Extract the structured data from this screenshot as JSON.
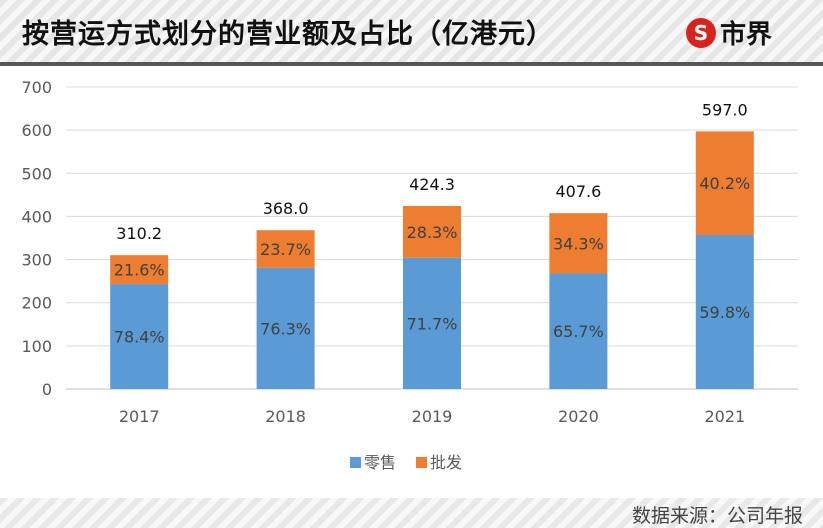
{
  "header": {
    "title": "按营运方式划分的营业额及占比（亿港元）",
    "logo_text": "市界",
    "logo_mark": "S"
  },
  "footer": {
    "source": "数据来源：公司年报"
  },
  "chart_data": {
    "type": "bar",
    "stacked": true,
    "categories": [
      "2017",
      "2018",
      "2019",
      "2020",
      "2021"
    ],
    "totals": [
      310.2,
      368.0,
      424.3,
      407.6,
      597.0
    ],
    "total_labels": [
      "310.2",
      "368.0",
      "424.3",
      "407.6",
      "597.0"
    ],
    "series": [
      {
        "name": "零售",
        "color": "#5b9bd5",
        "values": [
          243.2,
          280.8,
          304.2,
          267.8,
          357.0
        ],
        "labels": [
          "78.4%",
          "76.3%",
          "71.7%",
          "65.7%",
          "59.8%"
        ]
      },
      {
        "name": "批发",
        "color": "#ed7d31",
        "values": [
          67.0,
          87.2,
          120.1,
          139.8,
          240.0
        ],
        "labels": [
          "21.6%",
          "23.7%",
          "28.3%",
          "34.3%",
          "40.2%"
        ]
      }
    ],
    "ylim": [
      0,
      700
    ],
    "yticks": [
      0,
      100,
      200,
      300,
      400,
      500,
      600,
      700
    ],
    "grid": true,
    "legend": "bottom"
  }
}
